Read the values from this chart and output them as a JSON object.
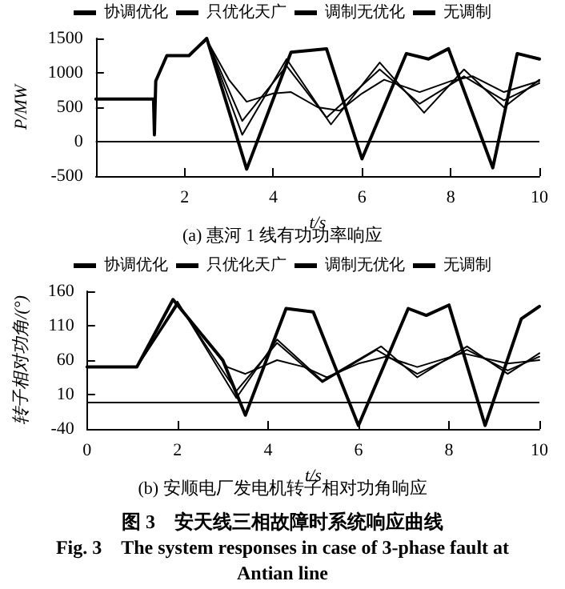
{
  "chart_data": [
    {
      "type": "line",
      "title": "(a) 惠河 1 线有功功率响应",
      "xlabel": "t/s",
      "ylabel": "P/MW",
      "xlim": [
        0,
        10
      ],
      "xticks": [
        2,
        4,
        6,
        8,
        10
      ],
      "ylim": [
        -500,
        1500
      ],
      "yticks": [
        -500,
        0,
        500,
        1000,
        1500
      ],
      "grid": false,
      "legend": "top",
      "marker": "none",
      "line_style": "solid",
      "ref_lines": [
        {
          "axis": "y",
          "value": 0
        }
      ],
      "series": [
        {
          "name": "协调优化",
          "color": "#000000",
          "x": [
            0,
            1.3,
            1.32,
            1.35,
            1.6,
            2.1,
            2.5,
            3.0,
            3.4,
            4.0,
            4.4,
            5.0,
            5.5,
            6.0,
            6.5,
            7.3,
            8.0,
            8.5,
            9.2,
            10
          ],
          "values": [
            620,
            620,
            100,
            880,
            1250,
            1250,
            1480,
            900,
            580,
            700,
            720,
            500,
            450,
            700,
            900,
            720,
            880,
            950,
            720,
            880
          ]
        },
        {
          "name": "只优化天广",
          "color": "#000000",
          "x": [
            0,
            1.3,
            1.32,
            1.35,
            1.6,
            2.1,
            2.5,
            3.3,
            4.3,
            5.2,
            6.4,
            7.3,
            8.3,
            9.2,
            10
          ],
          "values": [
            620,
            620,
            100,
            880,
            1250,
            1250,
            1490,
            300,
            1100,
            350,
            1050,
            550,
            950,
            600,
            850
          ]
        },
        {
          "name": "调制无优化",
          "color": "#000000",
          "x": [
            0,
            1.3,
            1.32,
            1.35,
            1.6,
            2.1,
            2.5,
            3.3,
            4.3,
            5.3,
            6.4,
            7.4,
            8.3,
            9.2,
            10
          ],
          "values": [
            620,
            620,
            100,
            880,
            1250,
            1250,
            1500,
            100,
            1200,
            250,
            1150,
            420,
            1050,
            500,
            900
          ]
        },
        {
          "name": "无调制",
          "color": "#000000",
          "x": [
            0,
            1.3,
            1.32,
            1.35,
            1.6,
            2.1,
            2.5,
            3.4,
            4.4,
            5.2,
            6.0,
            7.0,
            7.5,
            7.95,
            8.95,
            9.5,
            10
          ],
          "values": [
            620,
            620,
            100,
            880,
            1250,
            1250,
            1500,
            -400,
            1300,
            1350,
            -250,
            1280,
            1200,
            1350,
            -380,
            1280,
            1200
          ]
        }
      ]
    },
    {
      "type": "line",
      "title": "(b) 安顺电厂发电机转子相对功角响应",
      "xlabel": "t/s",
      "ylabel": "转子相对功角/(°)",
      "xlim": [
        0,
        10
      ],
      "xticks": [
        0,
        2,
        4,
        6,
        8,
        10
      ],
      "ylim": [
        -40,
        160
      ],
      "yticks": [
        -40,
        10,
        60,
        110,
        160
      ],
      "grid": false,
      "legend": "top",
      "marker": "none",
      "line_style": "solid",
      "ref_lines": [
        {
          "axis": "y",
          "value": 0
        }
      ],
      "annotations": [
        "图 3　安天线三相故障时系统响应曲线",
        "Fig. 3　The system responses in case of 3-phase fault at Antian line"
      ],
      "series": [
        {
          "name": "协调优化",
          "color": "#000000",
          "x": [
            0,
            1.1,
            2.0,
            3.1,
            3.5,
            4.2,
            4.8,
            5.3,
            6.0,
            6.6,
            7.3,
            8.3,
            9.3,
            10
          ],
          "values": [
            50,
            50,
            140,
            50,
            40,
            60,
            50,
            35,
            55,
            65,
            50,
            70,
            55,
            60
          ]
        },
        {
          "name": "只优化天广",
          "color": "#000000",
          "x": [
            0,
            1.1,
            2.0,
            3.3,
            4.2,
            5.2,
            6.4,
            7.3,
            8.4,
            9.3,
            10
          ],
          "values": [
            50,
            50,
            143,
            15,
            85,
            28,
            75,
            40,
            75,
            45,
            65
          ]
        },
        {
          "name": "调制无优化",
          "color": "#000000",
          "x": [
            0,
            1.1,
            2.0,
            3.3,
            4.2,
            5.2,
            6.5,
            7.3,
            8.4,
            9.3,
            10
          ],
          "values": [
            50,
            50,
            145,
            5,
            90,
            30,
            80,
            35,
            80,
            40,
            70
          ]
        },
        {
          "name": "无调制",
          "color": "#000000",
          "x": [
            0,
            1.1,
            1.9,
            3.0,
            3.5,
            4.4,
            5.0,
            6.0,
            7.1,
            7.5,
            8.0,
            8.8,
            9.6,
            10
          ],
          "values": [
            50,
            50,
            148,
            60,
            -20,
            135,
            130,
            -35,
            135,
            125,
            140,
            -35,
            120,
            138
          ]
        }
      ]
    }
  ]
}
